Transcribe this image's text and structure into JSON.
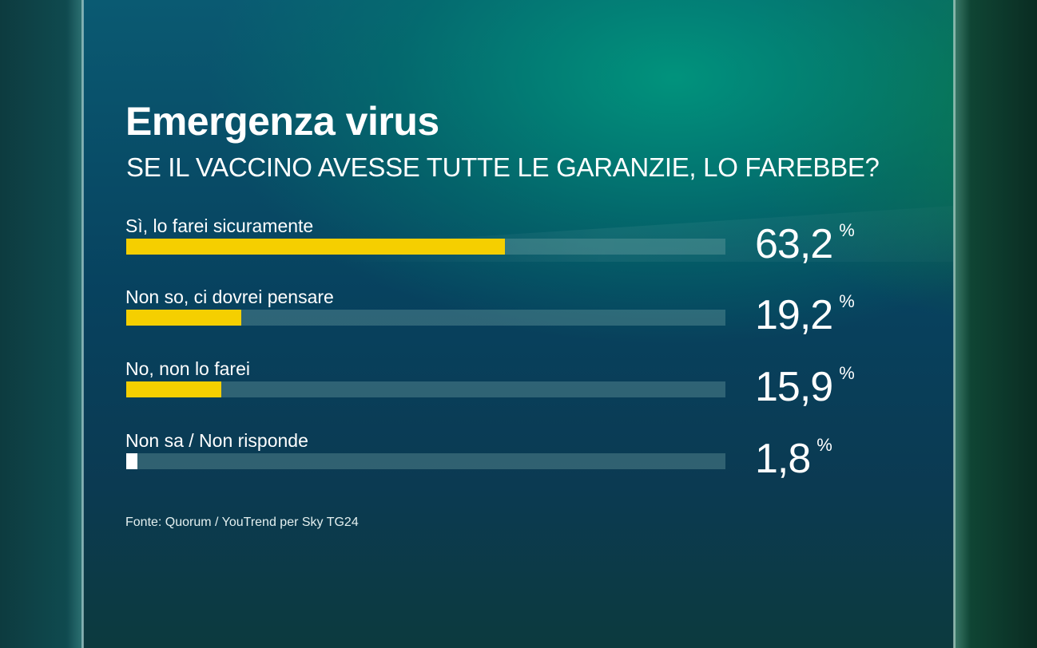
{
  "chart_data": {
    "type": "bar",
    "title": "Emergenza virus",
    "subtitle": "SE IL VACCINO AVESSE TUTTE LE GARANZIE, LO FAREBBE?",
    "categories": [
      "Sì, lo farei sicuramente",
      "Non so, ci dovrei pensare",
      "No, non lo farei",
      "Non sa / Non risponde"
    ],
    "values": [
      63.2,
      19.2,
      15.9,
      1.8
    ],
    "value_labels": [
      "63,2",
      "19,2",
      "15,9",
      "1,8"
    ],
    "unit": "%",
    "xlim": [
      0,
      100
    ],
    "bar_colors": [
      "#f5cf00",
      "#f5cf00",
      "#f5cf00",
      "#ffffff"
    ],
    "orientation": "horizontal",
    "source": "Fonte: Quorum / YouTrend per Sky TG24"
  }
}
